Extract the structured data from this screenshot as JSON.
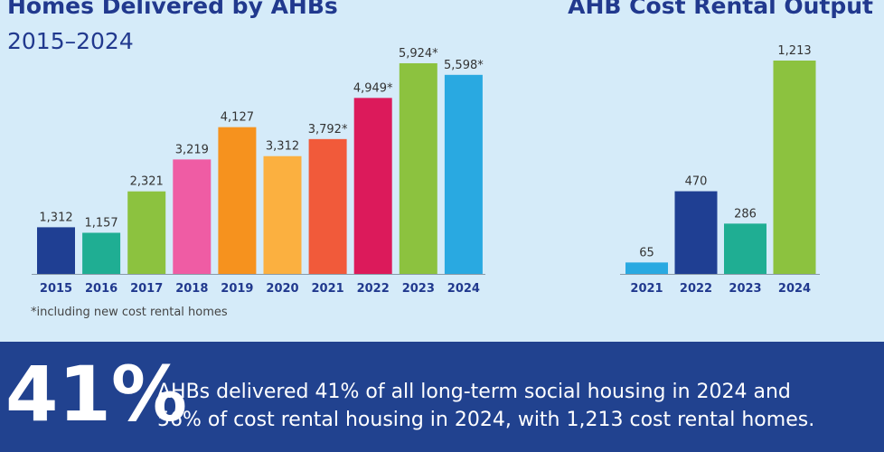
{
  "left_chart": {
    "title": "Homes Delivered by AHBs",
    "subtitle": "2015–2024",
    "footnote": "*including new cost rental homes"
  },
  "right_chart": {
    "title": "AHB Cost Rental Output"
  },
  "banner": {
    "stat": "41%",
    "line1": "AHBs delivered 41% of all long-term social housing in 2024 and",
    "line2": "56% of cost rental housing in 2024, with 1,213 cost rental homes."
  },
  "chart_data": [
    {
      "type": "bar",
      "title": "Homes Delivered by AHBs",
      "subtitle": "2015–2024",
      "categories": [
        "2015",
        "2016",
        "2017",
        "2018",
        "2019",
        "2020",
        "2021",
        "2022",
        "2023",
        "2024"
      ],
      "values": [
        1312,
        1157,
        2321,
        3219,
        4127,
        3312,
        3792,
        4949,
        5924,
        5598
      ],
      "data_labels": [
        "1,312",
        "1,157",
        "2,321",
        "3,219",
        "4,127",
        "3,312",
        "3,792*",
        "4,949*",
        "5,924*",
        "5,598*"
      ],
      "colors": [
        "#1f3f93",
        "#1fae93",
        "#8cc23f",
        "#ef5ca4",
        "#f6921e",
        "#fbb040",
        "#f15a3a",
        "#dc1a5b",
        "#8cc23f",
        "#29a9e1"
      ],
      "ylim": [
        0,
        6000
      ],
      "grid": false,
      "footnote": "*including new cost rental homes"
    },
    {
      "type": "bar",
      "title": "AHB Cost Rental Output",
      "categories": [
        "2021",
        "2022",
        "2023",
        "2024"
      ],
      "values": [
        65,
        470,
        286,
        1213
      ],
      "data_labels": [
        "65",
        "470",
        "286",
        "1,213"
      ],
      "colors": [
        "#29a9e1",
        "#1f3f93",
        "#1fae93",
        "#8cc23f"
      ],
      "ylim": [
        0,
        1213
      ],
      "grid": false
    }
  ]
}
